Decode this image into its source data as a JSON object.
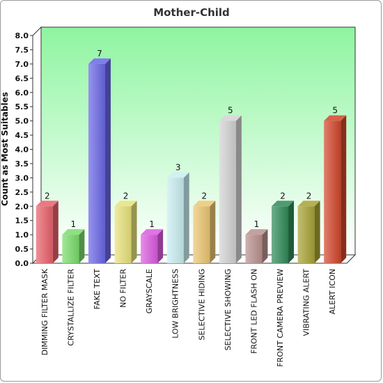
{
  "chart_data": {
    "type": "bar",
    "title": "Mother-Child",
    "xlabel": "",
    "ylabel": "Count as Most Suitables",
    "ylim": [
      0,
      8
    ],
    "ystep": 0.5,
    "yticks": [
      "0.0",
      "0.5",
      "1.0",
      "1.5",
      "2.0",
      "2.5",
      "3.0",
      "3.5",
      "4.0",
      "4.5",
      "5.0",
      "5.5",
      "6.0",
      "6.5",
      "7.0",
      "7.5",
      "8.0"
    ],
    "grid": false,
    "legend": "none",
    "plot_background": [
      "#ffffff",
      "#8ef5a0"
    ],
    "categories": [
      "DIMMING FILTER MASK",
      "CRYSTALLIZE FILTER",
      "FAKE TEXT",
      "NO FILTER",
      "GRAYSCALE",
      "LOW BRIGHTNESS",
      "SELECTIVE HIDING",
      "SELECTIVE SHOWING",
      "FRONT LED FLASH ON",
      "FRONT CAMERA PREVIEW",
      "VIBRATING ALERT",
      "ALERT ICON"
    ],
    "values": [
      2,
      1,
      7,
      2,
      1,
      3,
      2,
      5,
      1,
      2,
      2,
      5
    ],
    "data_labels": [
      "2",
      "1",
      "7",
      "2",
      "1",
      "3",
      "2",
      "5",
      "1",
      "2",
      "2",
      "5"
    ],
    "colors": [
      "#e8606a",
      "#79dc6a",
      "#6a66e6",
      "#e8e27a",
      "#dc5ae0",
      "#c8eef0",
      "#ecc670",
      "#d2d2d2",
      "#b8908e",
      "#2f8a58",
      "#a8a234",
      "#d2452a"
    ]
  }
}
